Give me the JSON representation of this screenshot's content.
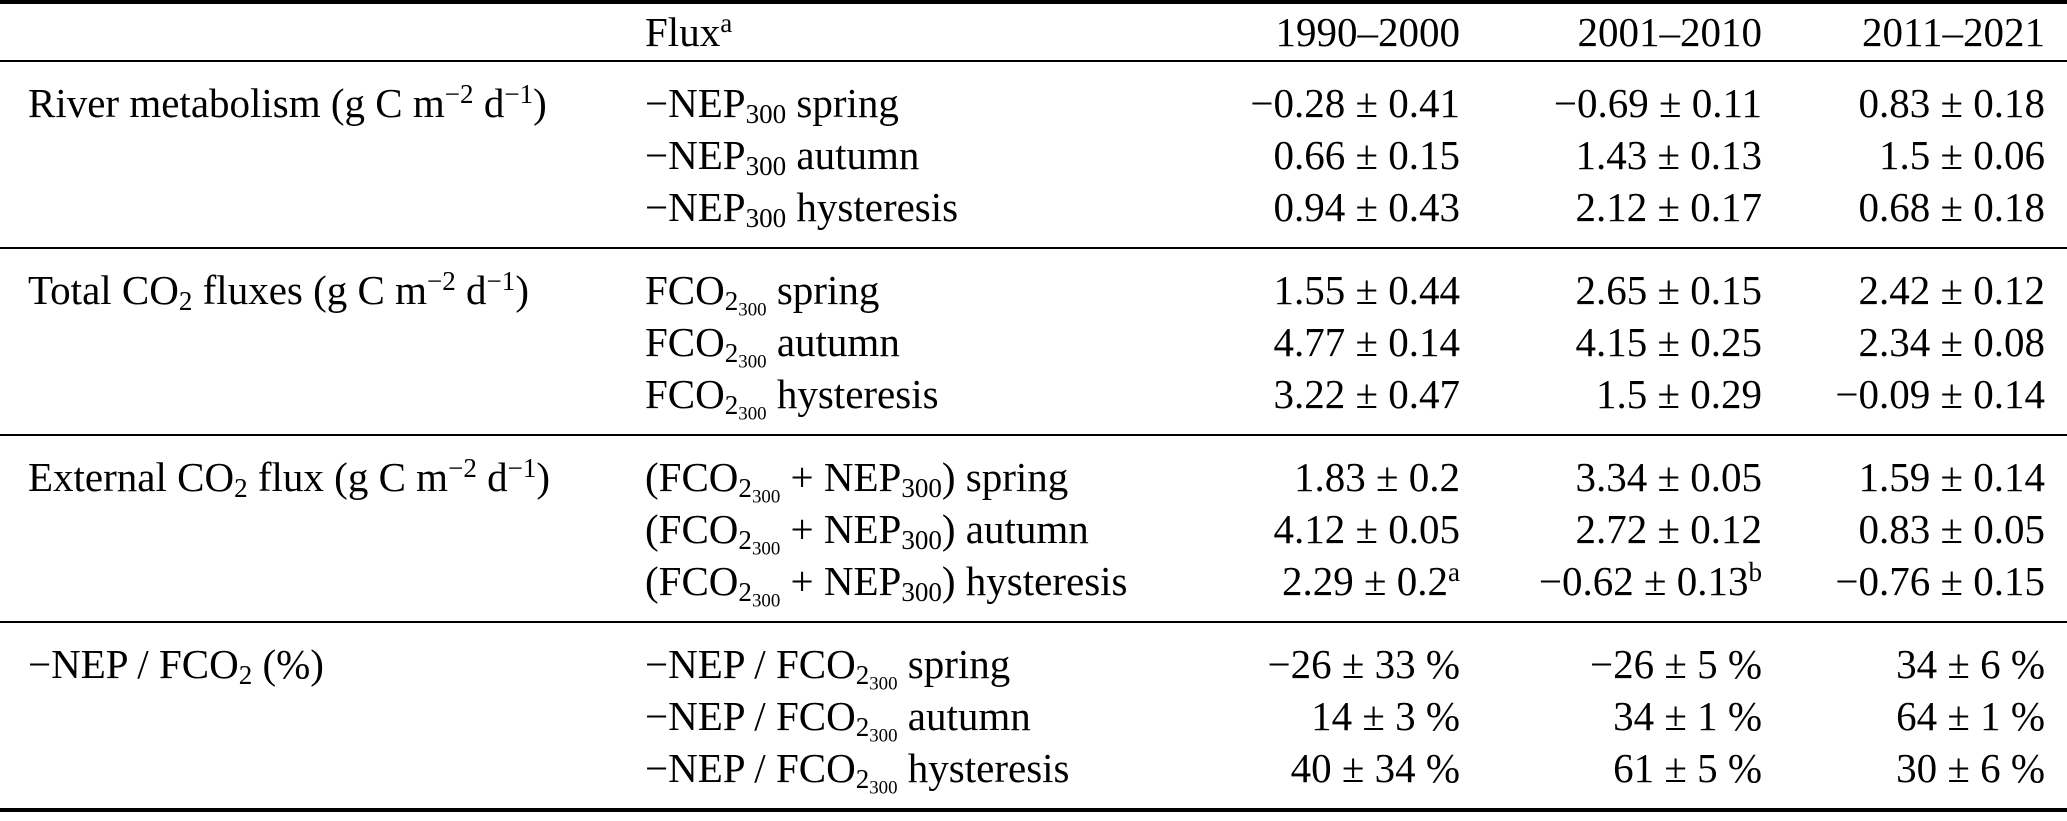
{
  "page": {
    "background": "#ffffff",
    "text_color": "#000000",
    "rule_color": "#000000"
  },
  "table": {
    "header": {
      "group_label": "",
      "flux_label": [
        {
          "t": "Flux"
        },
        {
          "t": "a",
          "s": "sup"
        }
      ],
      "periods": [
        "1990–2000",
        "2001–2010",
        "2011–2021"
      ]
    },
    "sections": [
      {
        "group": [
          {
            "t": "River metabolism (g C m"
          },
          {
            "t": "−2",
            "s": "sup"
          },
          {
            "t": " d"
          },
          {
            "t": "−1",
            "s": "sup"
          },
          {
            "t": ")"
          }
        ],
        "rows": [
          {
            "flux": [
              {
                "t": "−NEP"
              },
              {
                "t": "300",
                "s": "sub"
              },
              {
                "t": " spring"
              }
            ],
            "values": [
              "−0.28 ± 0.41",
              "−0.69 ± 0.11",
              "0.83 ± 0.18"
            ]
          },
          {
            "flux": [
              {
                "t": "−NEP"
              },
              {
                "t": "300",
                "s": "sub"
              },
              {
                "t": " autumn"
              }
            ],
            "values": [
              "0.66 ± 0.15",
              "1.43 ± 0.13",
              "1.5 ± 0.06"
            ]
          },
          {
            "flux": [
              {
                "t": "−NEP"
              },
              {
                "t": "300",
                "s": "sub"
              },
              {
                "t": " hysteresis"
              }
            ],
            "values": [
              "0.94 ± 0.43",
              "2.12 ± 0.17",
              "0.68 ± 0.18"
            ]
          }
        ]
      },
      {
        "group": [
          {
            "t": "Total CO"
          },
          {
            "t": "2",
            "s": "sub"
          },
          {
            "t": " fluxes (g C m"
          },
          {
            "t": "−2",
            "s": "sup"
          },
          {
            "t": " d"
          },
          {
            "t": "−1",
            "s": "sup"
          },
          {
            "t": ")"
          }
        ],
        "rows": [
          {
            "flux": [
              {
                "t": "FCO"
              },
              {
                "t": "2",
                "s": "sub"
              },
              {
                "t": "300",
                "s": "subsub"
              },
              {
                "t": " spring"
              }
            ],
            "values": [
              "1.55 ± 0.44",
              "2.65 ± 0.15",
              "2.42 ± 0.12"
            ]
          },
          {
            "flux": [
              {
                "t": "FCO"
              },
              {
                "t": "2",
                "s": "sub"
              },
              {
                "t": "300",
                "s": "subsub"
              },
              {
                "t": " autumn"
              }
            ],
            "values": [
              "4.77 ± 0.14",
              "4.15 ± 0.25",
              "2.34 ± 0.08"
            ]
          },
          {
            "flux": [
              {
                "t": "FCO"
              },
              {
                "t": "2",
                "s": "sub"
              },
              {
                "t": "300",
                "s": "subsub"
              },
              {
                "t": " hysteresis"
              }
            ],
            "values": [
              "3.22 ± 0.47",
              "1.5 ± 0.29",
              "−0.09 ± 0.14"
            ]
          }
        ]
      },
      {
        "group": [
          {
            "t": "External CO"
          },
          {
            "t": "2",
            "s": "sub"
          },
          {
            "t": " flux (g C m"
          },
          {
            "t": "−2",
            "s": "sup"
          },
          {
            "t": " d"
          },
          {
            "t": "−1",
            "s": "sup"
          },
          {
            "t": ")"
          }
        ],
        "rows": [
          {
            "flux": [
              {
                "t": "(FCO"
              },
              {
                "t": "2",
                "s": "sub"
              },
              {
                "t": "300",
                "s": "subsub"
              },
              {
                "t": " + NEP"
              },
              {
                "t": "300",
                "s": "sub"
              },
              {
                "t": ") spring"
              }
            ],
            "values": [
              "1.83 ± 0.2",
              "3.34 ± 0.05",
              "1.59 ± 0.14"
            ]
          },
          {
            "flux": [
              {
                "t": "(FCO"
              },
              {
                "t": "2",
                "s": "sub"
              },
              {
                "t": "300",
                "s": "subsub"
              },
              {
                "t": " + NEP"
              },
              {
                "t": "300",
                "s": "sub"
              },
              {
                "t": ") autumn"
              }
            ],
            "values": [
              "4.12 ± 0.05",
              "2.72 ± 0.12",
              "0.83 ± 0.05"
            ]
          },
          {
            "flux": [
              {
                "t": "(FCO"
              },
              {
                "t": "2",
                "s": "sub"
              },
              {
                "t": "300",
                "s": "subsub"
              },
              {
                "t": " + NEP"
              },
              {
                "t": "300",
                "s": "sub"
              },
              {
                "t": ") hysteresis"
              }
            ],
            "values": [
              [
                {
                  "t": "2.29 ± 0.2"
                },
                {
                  "t": "a",
                  "s": "sup"
                }
              ],
              [
                {
                  "t": "−0.62 ± 0.13"
                },
                {
                  "t": "b",
                  "s": "sup"
                }
              ],
              "−0.76 ± 0.15"
            ]
          }
        ]
      },
      {
        "group": [
          {
            "t": "−NEP / FCO"
          },
          {
            "t": "2",
            "s": "sub"
          },
          {
            "t": " (%)"
          }
        ],
        "rows": [
          {
            "flux": [
              {
                "t": "−NEP / FCO"
              },
              {
                "t": "2",
                "s": "sub"
              },
              {
                "t": "300",
                "s": "subsub"
              },
              {
                "t": " spring"
              }
            ],
            "values": [
              "−26 ± 33 %",
              "−26 ± 5 %",
              "34 ± 6 %"
            ]
          },
          {
            "flux": [
              {
                "t": "−NEP / FCO"
              },
              {
                "t": "2",
                "s": "sub"
              },
              {
                "t": "300",
                "s": "subsub"
              },
              {
                "t": " autumn"
              }
            ],
            "values": [
              "14 ± 3 %",
              "34 ± 1 %",
              "64 ± 1 %"
            ]
          },
          {
            "flux": [
              {
                "t": "−NEP / FCO"
              },
              {
                "t": "2",
                "s": "sub"
              },
              {
                "t": "300",
                "s": "subsub"
              },
              {
                "t": " hysteresis"
              }
            ],
            "values": [
              "40 ± 34 %",
              "61 ± 5 %",
              "30 ± 6 %"
            ]
          }
        ]
      }
    ]
  }
}
